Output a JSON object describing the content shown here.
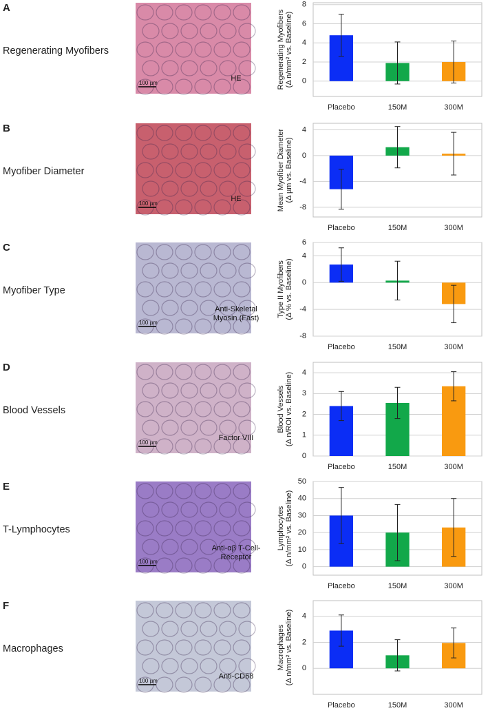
{
  "chart_data": [
    {
      "type": "bar",
      "panel": "A",
      "title": "Regenerating Myofibers",
      "image_text": [
        "HE"
      ],
      "scale_bar": "100 µm",
      "image_color": "#d98aa8",
      "ylabel": [
        "Regenerating Myofibers",
        "(Δ n/mm² vs. Baseline)"
      ],
      "categories": [
        "Placebo",
        "150M",
        "300M"
      ],
      "values": [
        4.8,
        1.9,
        2.0
      ],
      "errors": [
        2.2,
        2.2,
        2.2
      ],
      "colors": [
        "#0b2df5",
        "#12a84a",
        "#f99a10"
      ],
      "ylim": [
        -1.6,
        8.2
      ],
      "yticks": [
        0,
        2,
        4,
        6,
        8
      ],
      "grid": true
    },
    {
      "type": "bar",
      "panel": "B",
      "title": "Myofiber Diameter",
      "image_text": [
        "HE"
      ],
      "scale_bar": "100 µm",
      "image_color": "#c8606e",
      "ylabel": [
        "Mean Myofiber Diameter",
        "(Δ µm vs. Baseline)"
      ],
      "categories": [
        "Placebo",
        "150M",
        "300M"
      ],
      "values": [
        -5.2,
        1.3,
        0.3
      ],
      "errors": [
        3.1,
        3.2,
        3.3
      ],
      "colors": [
        "#0b2df5",
        "#12a84a",
        "#f99a10"
      ],
      "ylim": [
        -9.5,
        5
      ],
      "yticks": [
        -8,
        -4,
        0,
        4
      ],
      "grid": true
    },
    {
      "type": "bar",
      "panel": "C",
      "title": "Myofiber Type",
      "image_text": [
        "Anti-Skeletal",
        "Myosin (Fast)"
      ],
      "scale_bar": "100 µm",
      "image_color": "#b9b8d2",
      "ylabel": [
        "Type II Myofibers",
        "(Δ % vs. Baseline)"
      ],
      "categories": [
        "Placebo",
        "150M",
        "300M"
      ],
      "values": [
        2.7,
        0.3,
        -3.2
      ],
      "errors": [
        2.5,
        2.9,
        2.8
      ],
      "colors": [
        "#0b2df5",
        "#12a84a",
        "#f99a10"
      ],
      "ylim": [
        -8,
        6
      ],
      "yticks": [
        -8,
        -4,
        0,
        4,
        6
      ],
      "grid": true
    },
    {
      "type": "bar",
      "panel": "D",
      "title": "Blood Vessels",
      "image_text": [
        "Factor VIII"
      ],
      "scale_bar": "100 µm",
      "image_color": "#cfb2c8",
      "ylabel": [
        "Blood Vessels",
        "(Δ n/ROI vs. Baseline)"
      ],
      "categories": [
        "Placebo",
        "150M",
        "300M"
      ],
      "values": [
        2.4,
        2.55,
        3.35
      ],
      "errors": [
        0.7,
        0.75,
        0.7
      ],
      "colors": [
        "#0b2df5",
        "#12a84a",
        "#f99a10"
      ],
      "ylim": [
        0,
        4.5
      ],
      "yticks": [
        0,
        1,
        2,
        3,
        4
      ],
      "grid": true
    },
    {
      "type": "bar",
      "panel": "E",
      "title": "T-Lymphocytes",
      "image_text": [
        "Anti-αβ T-Cell-",
        "Receptor"
      ],
      "scale_bar": "100 µm",
      "image_color": "#9a7cc6",
      "ylabel": [
        "Lymphocytes",
        "(Δ n/mm² vs. Baseline)"
      ],
      "categories": [
        "Placebo",
        "150M",
        "300M"
      ],
      "values": [
        30,
        20,
        23
      ],
      "errors": [
        16.5,
        16.5,
        17
      ],
      "colors": [
        "#0b2df5",
        "#12a84a",
        "#f99a10"
      ],
      "ylim": [
        -5,
        50
      ],
      "yticks": [
        0,
        10,
        20,
        30,
        40,
        50
      ],
      "grid": true
    },
    {
      "type": "bar",
      "panel": "F",
      "title": "Macrophages",
      "image_text": [
        "Anti-CD68"
      ],
      "scale_bar": "100 µm",
      "image_color": "#c4c8d8",
      "ylabel": [
        "Macrophages",
        "(Δ n/mm² vs. Baseline)"
      ],
      "categories": [
        "Placebo",
        "150M",
        "300M"
      ],
      "values": [
        2.9,
        1.0,
        1.95
      ],
      "errors": [
        1.2,
        1.2,
        1.15
      ],
      "colors": [
        "#0b2df5",
        "#12a84a",
        "#f99a10"
      ],
      "ylim": [
        -2,
        5.2
      ],
      "yticks": [
        0,
        2,
        4
      ],
      "grid": true
    }
  ]
}
